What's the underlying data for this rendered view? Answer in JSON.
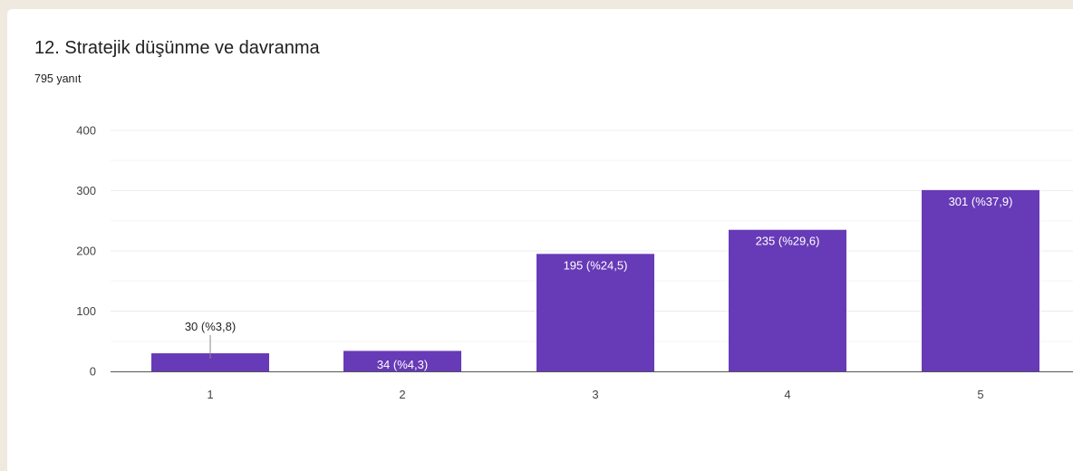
{
  "header": {
    "title": "12.  Stratejik düşünme ve davranma",
    "response_count": "795 yanıt"
  },
  "colors": {
    "bar": "#673ab7",
    "label_inside": "#ffffff",
    "label_outside": "#222222",
    "grid": "#ececec",
    "axis": "#555555"
  },
  "chart_data": {
    "type": "bar",
    "categories": [
      "1",
      "2",
      "3",
      "4",
      "5"
    ],
    "values": [
      30,
      34,
      195,
      235,
      301
    ],
    "data_labels": [
      "30 (%3,8)",
      "34 (%4,3)",
      "195 (%24,5)",
      "235 (%29,6)",
      "301 (%37,9)"
    ],
    "yticks": [
      "0",
      "100",
      "200",
      "300",
      "400"
    ],
    "ylim": [
      0,
      400
    ],
    "grid": true,
    "legend": "none"
  }
}
